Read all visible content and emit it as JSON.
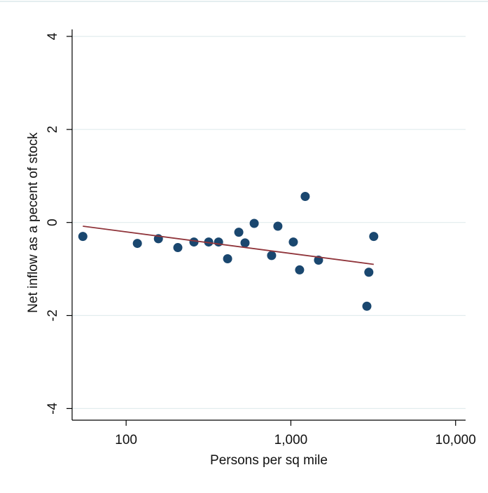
{
  "chart_data": {
    "type": "scatter",
    "xlabel": "Persons per sq mile",
    "ylabel": "Net inflow as a pecent of stock",
    "xscale": "log",
    "xlim": [
      47,
      11500
    ],
    "ylim": [
      -4.25,
      4.15
    ],
    "xticks": [
      {
        "value": 100,
        "label": "100"
      },
      {
        "value": 1000,
        "label": "1,000"
      },
      {
        "value": 10000,
        "label": "10,000"
      }
    ],
    "yticks": [
      4,
      2,
      0,
      -2,
      -4
    ],
    "grid": true,
    "series": [
      {
        "type": "scatter",
        "color": "#1a476f",
        "x": [
          54.6,
          117,
          157,
          206,
          258,
          317,
          364,
          413,
          483,
          527,
          599,
          764,
          834,
          1035,
          1130,
          1222,
          1472,
          2893,
          2974,
          3185
        ],
        "values": [
          -0.3,
          -0.45,
          -0.35,
          -0.54,
          -0.42,
          -0.42,
          -0.42,
          -0.78,
          -0.21,
          -0.44,
          -0.02,
          -0.71,
          -0.08,
          -0.42,
          -1.02,
          0.56,
          -0.81,
          -1.8,
          -1.07,
          -0.3
        ]
      },
      {
        "type": "line",
        "color": "#90353b",
        "x": [
          54.6,
          3185
        ],
        "values": [
          -0.08,
          -0.9
        ]
      }
    ]
  }
}
